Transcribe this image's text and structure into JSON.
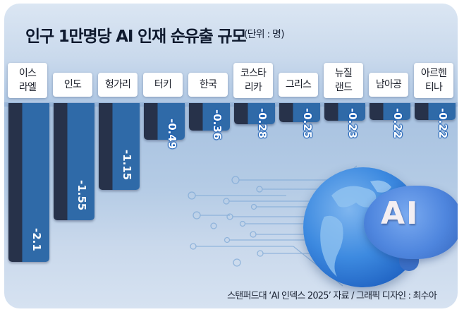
{
  "header": {
    "title": "인구 1만명당 AI 인재 순유출 규모",
    "unit": "(단위 : 명)"
  },
  "source": "스탠퍼드대 ‘AI 인덱스 2025’ 자료 / 그래픽 디자인 : 최수아",
  "illustration": {
    "globe": "globe-icon",
    "brain": "brain-icon",
    "brain_text": "AI",
    "circuit": "circuit-lines"
  },
  "colors": {
    "bar_dark": "#27324a",
    "bar_blue": "#2f6aa8",
    "background_top": "#dbe6f3",
    "background_mid": "#a9c3e1",
    "label_bg": "#ffffff",
    "value_outline": "#1b5fb5"
  },
  "chart_data": {
    "type": "bar",
    "orientation": "vertical-downward",
    "title": "인구 1만명당 AI 인재 순유출 규모",
    "unit": "명",
    "categories": [
      "이스라엘",
      "인도",
      "헝가리",
      "터키",
      "한국",
      "코스타리카",
      "그리스",
      "뉴질랜드",
      "남아공",
      "아르헨티나"
    ],
    "category_lines": [
      [
        "이스",
        "라엘"
      ],
      [
        "인도"
      ],
      [
        "헝가리"
      ],
      [
        "터키"
      ],
      [
        "한국"
      ],
      [
        "코스타",
        "리카"
      ],
      [
        "그리스"
      ],
      [
        "뉴질",
        "랜드"
      ],
      [
        "남아공"
      ],
      [
        "아르헨",
        "티나"
      ]
    ],
    "values": [
      -2.1,
      -1.55,
      -1.15,
      -0.49,
      -0.36,
      -0.28,
      -0.25,
      -0.23,
      -0.22,
      -0.22
    ],
    "value_labels": [
      "-2.1",
      "-1.55",
      "-1.15",
      "-0.49",
      "-0.36",
      "-0.28",
      "-0.25",
      "-0.23",
      "-0.22",
      "-0.22"
    ],
    "xlabel": "",
    "ylabel": "",
    "grid": false,
    "legend": "none",
    "source": "스탠퍼드대 ‘AI 인덱스 2025’"
  }
}
